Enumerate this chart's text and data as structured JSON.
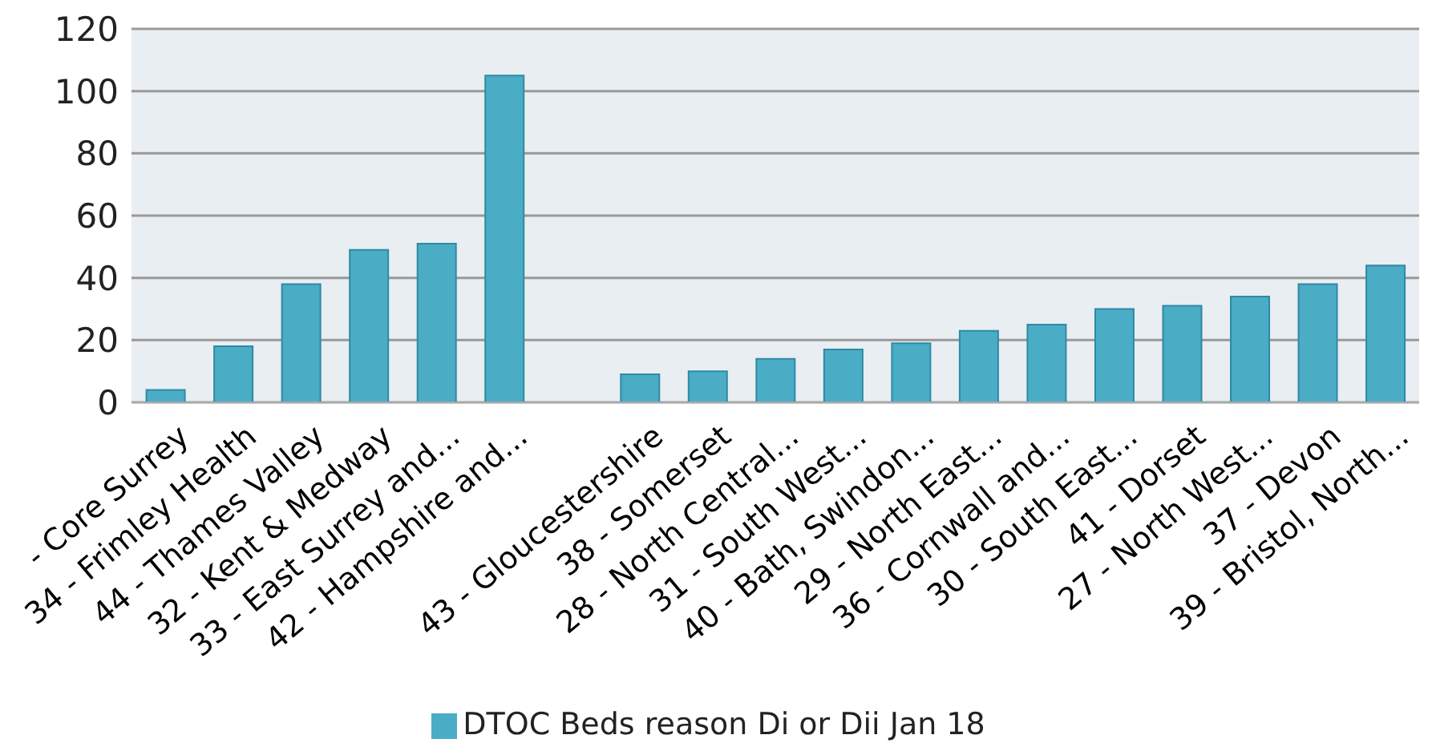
{
  "chart_data": {
    "type": "bar",
    "categories": [
      "- Core Surrey",
      "34 - Frimley Health",
      "44 - Thames Valley",
      "32 - Kent & Medway",
      "33 - East Surrey and...",
      "42 - Hampshire and...",
      null,
      "43 - Gloucestershire",
      "38 - Somerset",
      "28 - North Central...",
      "31 - South West...",
      "40 - Bath, Swindon...",
      "29 - North East...",
      "36 - Cornwall and...",
      "30 - South East...",
      "41 - Dorset",
      "27 - North West...",
      "37 - Devon",
      "39 - Bristol, North..."
    ],
    "series": [
      {
        "name": "DTOC Beds reason Di or Dii Jan 18",
        "color": "#4bacc6",
        "values": [
          4,
          18,
          38,
          49,
          51,
          105,
          null,
          9,
          10,
          14,
          17,
          19,
          23,
          25,
          30,
          31,
          34,
          38,
          44
        ]
      }
    ],
    "ylim": [
      0,
      120
    ],
    "yticks": [
      0,
      20,
      40,
      60,
      80,
      100,
      120
    ],
    "grid": "y",
    "legend": "bottom"
  }
}
